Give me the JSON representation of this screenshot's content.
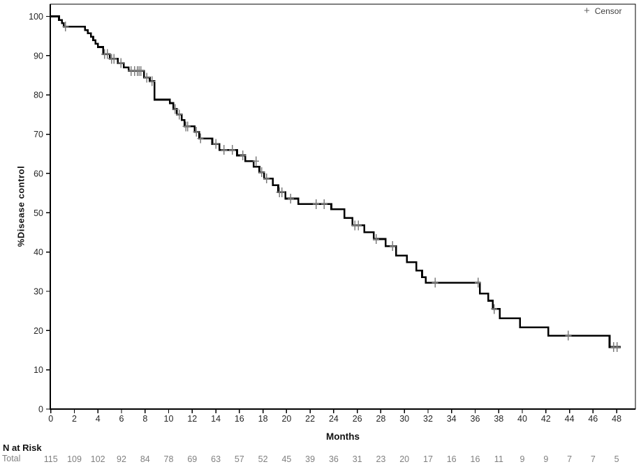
{
  "chart_data": {
    "type": "line",
    "subtype": "kaplan-meier-step",
    "title": "",
    "xlabel": "Months",
    "ylabel": "%Disease control",
    "xlim": [
      0,
      49.6
    ],
    "ylim": [
      0,
      100
    ],
    "grid": false,
    "xticks": [
      0,
      2,
      4,
      6,
      8,
      10,
      12,
      14,
      16,
      18,
      20,
      22,
      24,
      26,
      28,
      30,
      32,
      34,
      36,
      38,
      40,
      42,
      44,
      46,
      48
    ],
    "yticks": [
      0,
      10,
      20,
      30,
      40,
      50,
      60,
      70,
      80,
      90,
      100
    ],
    "legend": [
      {
        "marker": "+",
        "label": "Censor"
      }
    ],
    "legend_position": "top-right-inside",
    "series": [
      {
        "name": "Total",
        "steps": [
          [
            0,
            100
          ],
          [
            0.7,
            99.1
          ],
          [
            0.95,
            98.3
          ],
          [
            1.1,
            97.4
          ],
          [
            2.9,
            96.5
          ],
          [
            3.15,
            95.7
          ],
          [
            3.4,
            94.8
          ],
          [
            3.6,
            93.9
          ],
          [
            3.8,
            93.0
          ],
          [
            4.0,
            92.2
          ],
          [
            4.45,
            90.4
          ],
          [
            5.0,
            89.2
          ],
          [
            5.7,
            88.1
          ],
          [
            6.2,
            87.0
          ],
          [
            6.6,
            86.1
          ],
          [
            7.9,
            84.4
          ],
          [
            8.4,
            83.5
          ],
          [
            8.8,
            78.8
          ],
          [
            10.1,
            77.9
          ],
          [
            10.4,
            76.4
          ],
          [
            10.7,
            75.0
          ],
          [
            11.1,
            73.6
          ],
          [
            11.35,
            72.0
          ],
          [
            12.2,
            70.6
          ],
          [
            12.6,
            68.9
          ],
          [
            13.7,
            67.5
          ],
          [
            14.3,
            66.0
          ],
          [
            15.8,
            64.6
          ],
          [
            16.5,
            63.1
          ],
          [
            17.2,
            61.7
          ],
          [
            17.7,
            60.3
          ],
          [
            18.1,
            58.7
          ],
          [
            18.85,
            57.0
          ],
          [
            19.3,
            55.2
          ],
          [
            19.9,
            53.6
          ],
          [
            21.0,
            52.2
          ],
          [
            23.8,
            50.9
          ],
          [
            24.9,
            48.7
          ],
          [
            25.6,
            46.8
          ],
          [
            26.6,
            45.0
          ],
          [
            27.4,
            43.3
          ],
          [
            28.4,
            41.5
          ],
          [
            29.3,
            39.1
          ],
          [
            30.2,
            37.4
          ],
          [
            31.0,
            35.3
          ],
          [
            31.5,
            33.6
          ],
          [
            31.8,
            32.2
          ],
          [
            36.4,
            29.4
          ],
          [
            37.1,
            27.6
          ],
          [
            37.5,
            25.5
          ],
          [
            38.1,
            23.1
          ],
          [
            39.8,
            20.8
          ],
          [
            42.2,
            18.7
          ],
          [
            47.4,
            15.8
          ]
        ],
        "end_time": 48.35,
        "censors": [
          [
            1.25,
            97.4
          ],
          [
            4.55,
            90.4
          ],
          [
            4.8,
            90.4
          ],
          [
            5.15,
            89.2
          ],
          [
            5.35,
            89.2
          ],
          [
            5.95,
            88.1
          ],
          [
            6.8,
            86.1
          ],
          [
            7.1,
            86.1
          ],
          [
            7.35,
            86.1
          ],
          [
            7.5,
            86.1
          ],
          [
            7.65,
            86.1
          ],
          [
            8.15,
            84.4
          ],
          [
            8.6,
            83.5
          ],
          [
            10.55,
            76.4
          ],
          [
            10.9,
            75.0
          ],
          [
            11.45,
            72.0
          ],
          [
            11.6,
            72.0
          ],
          [
            12.35,
            70.6
          ],
          [
            12.7,
            68.9
          ],
          [
            14.0,
            67.5
          ],
          [
            14.7,
            66.0
          ],
          [
            15.4,
            66.0
          ],
          [
            16.3,
            64.6
          ],
          [
            17.4,
            63.1
          ],
          [
            17.9,
            60.3
          ],
          [
            18.3,
            58.7
          ],
          [
            19.4,
            55.2
          ],
          [
            19.6,
            55.2
          ],
          [
            20.35,
            53.6
          ],
          [
            22.5,
            52.2
          ],
          [
            23.2,
            52.2
          ],
          [
            25.8,
            46.8
          ],
          [
            26.1,
            46.8
          ],
          [
            27.6,
            43.3
          ],
          [
            29.0,
            41.5
          ],
          [
            32.6,
            32.2
          ],
          [
            36.25,
            32.2
          ],
          [
            37.6,
            25.5
          ],
          [
            43.9,
            18.7
          ],
          [
            47.75,
            15.8
          ],
          [
            48.05,
            15.8
          ]
        ]
      }
    ],
    "n_at_risk": {
      "header": "N at Risk",
      "row_label": "Total",
      "times": [
        0,
        2,
        4,
        6,
        8,
        10,
        12,
        14,
        16,
        18,
        20,
        22,
        24,
        26,
        28,
        30,
        32,
        34,
        36,
        38,
        40,
        42,
        44,
        46,
        48
      ],
      "counts": [
        115,
        109,
        102,
        92,
        84,
        78,
        69,
        63,
        57,
        52,
        45,
        39,
        36,
        31,
        23,
        20,
        17,
        16,
        16,
        11,
        9,
        9,
        7,
        7,
        5
      ]
    },
    "colors": {
      "curve": "#000000",
      "censor_mark": "#7d7d7d",
      "axis": "#000000",
      "tick_label": "#262626",
      "n_at_risk_numbers": "#808080",
      "legend_text": "#3f3f3f"
    }
  }
}
